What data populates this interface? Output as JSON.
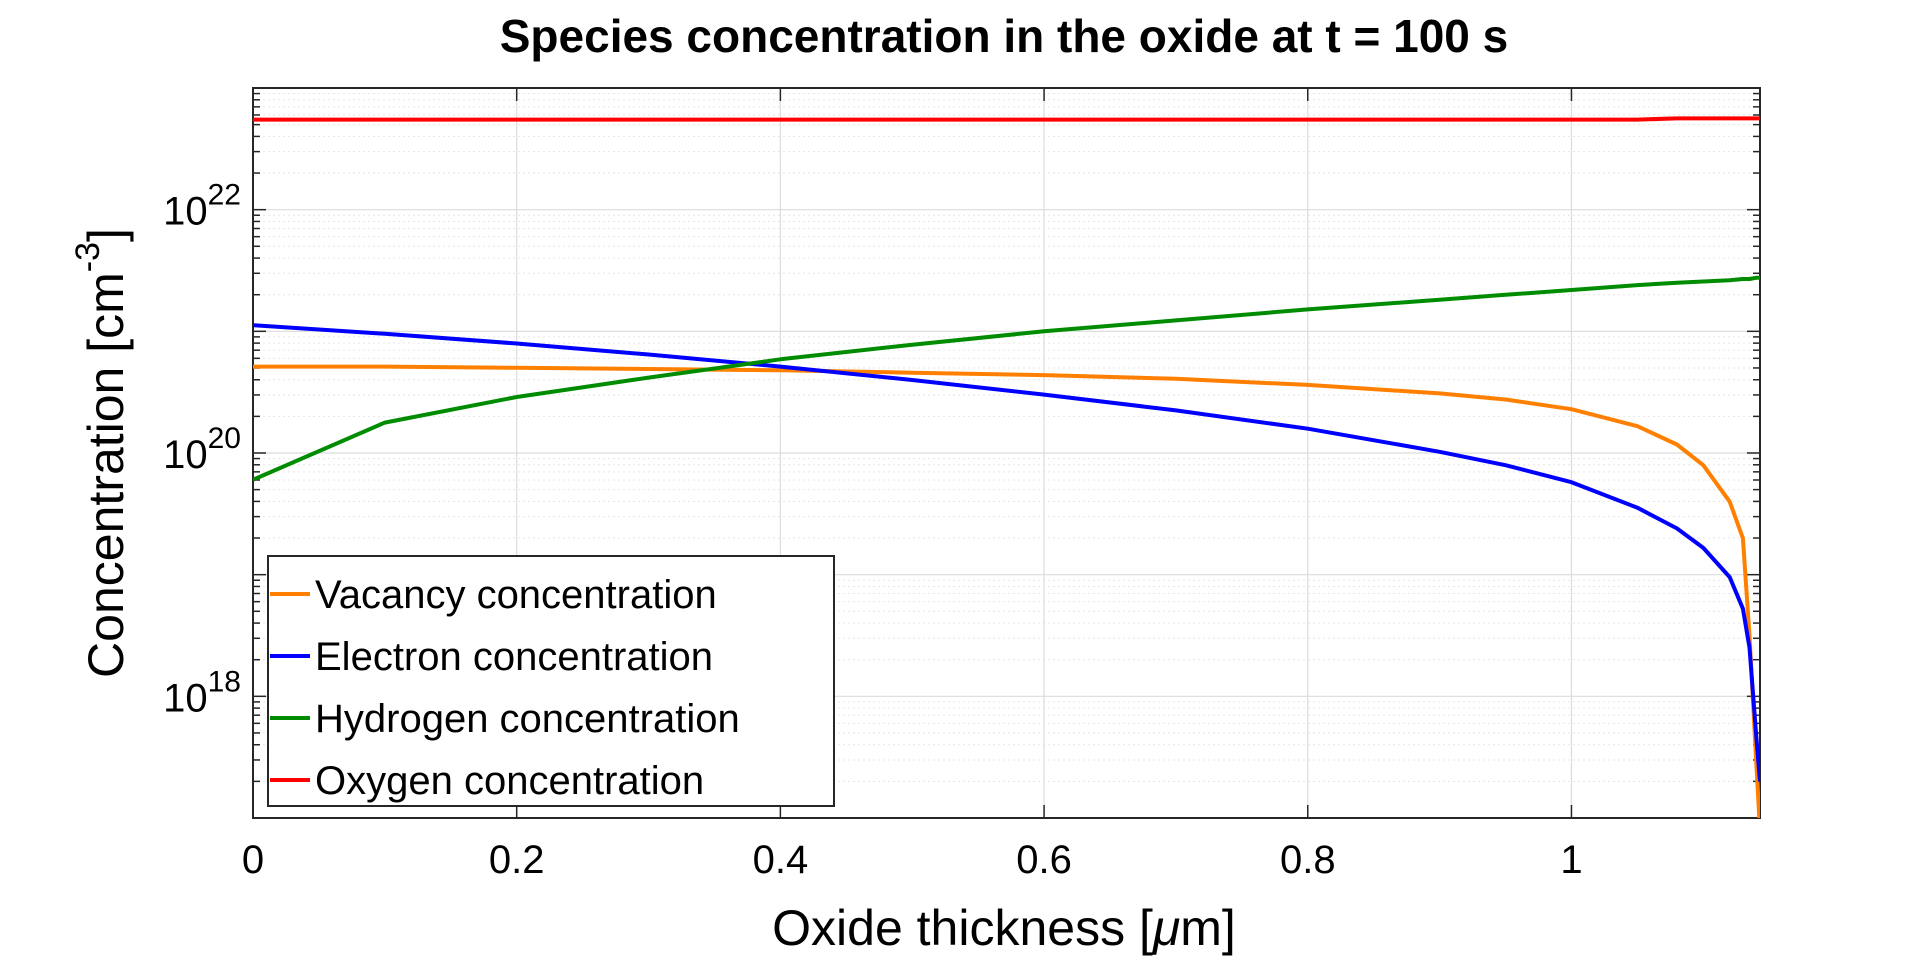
{
  "chart_data": {
    "type": "line",
    "title": "Species concentration in the oxide at t = 100 s",
    "xlabel": {
      "prefix": "Oxide thickness [",
      "symbol": "μ",
      "suffix": "m]"
    },
    "ylabel": {
      "prefix": "Concentration [cm",
      "superscript": "-3",
      "suffix": "]"
    },
    "xlim": [
      0,
      1.143
    ],
    "ylim_log10": [
      17,
      23
    ],
    "y_scale": "log",
    "grid": true,
    "legend_position": "bottom-left",
    "x_ticks": [
      {
        "value": 0,
        "label": "0"
      },
      {
        "value": 0.2,
        "label": "0.2"
      },
      {
        "value": 0.4,
        "label": "0.4"
      },
      {
        "value": 0.6,
        "label": "0.6"
      },
      {
        "value": 0.8,
        "label": "0.8"
      },
      {
        "value": 1,
        "label": "1"
      }
    ],
    "y_ticks": [
      {
        "value_log10": 18,
        "base": "10",
        "exponent": "18"
      },
      {
        "value_log10": 20,
        "base": "10",
        "exponent": "20"
      },
      {
        "value_log10": 22,
        "base": "10",
        "exponent": "22"
      }
    ],
    "x": [
      0,
      0.1,
      0.2,
      0.3,
      0.4,
      0.5,
      0.6,
      0.7,
      0.8,
      0.9,
      0.95,
      1.0,
      1.05,
      1.08,
      1.1,
      1.12,
      1.13,
      1.135,
      1.14,
      1.143
    ],
    "series": [
      {
        "name": "Vacancy concentration",
        "color": "#FF8000",
        "y_log10": [
          20.71,
          20.71,
          20.7,
          20.69,
          20.68,
          20.66,
          20.64,
          20.61,
          20.56,
          20.49,
          20.44,
          20.36,
          20.22,
          20.07,
          19.9,
          19.6,
          19.3,
          18.5,
          17.5,
          16.9
        ]
      },
      {
        "name": "Electron concentration",
        "color": "#0000FF",
        "y_log10": [
          21.05,
          20.98,
          20.9,
          20.81,
          20.71,
          20.6,
          20.48,
          20.35,
          20.2,
          20.01,
          19.9,
          19.76,
          19.55,
          19.38,
          19.22,
          18.98,
          18.72,
          18.4,
          17.7,
          17.3
        ]
      },
      {
        "name": "Hydrogen concentration",
        "color": "#008C00",
        "y_log10": [
          19.78,
          20.25,
          20.46,
          20.62,
          20.77,
          20.89,
          21.0,
          21.09,
          21.18,
          21.26,
          21.3,
          21.34,
          21.38,
          21.4,
          21.41,
          21.42,
          21.43,
          21.43,
          21.44,
          21.44
        ]
      },
      {
        "name": "Oxygen concentration",
        "color": "#FF0000",
        "y_log10": [
          22.74,
          22.74,
          22.74,
          22.74,
          22.74,
          22.74,
          22.74,
          22.74,
          22.74,
          22.74,
          22.74,
          22.74,
          22.74,
          22.75,
          22.75,
          22.75,
          22.75,
          22.75,
          22.75,
          22.75
        ]
      }
    ]
  }
}
